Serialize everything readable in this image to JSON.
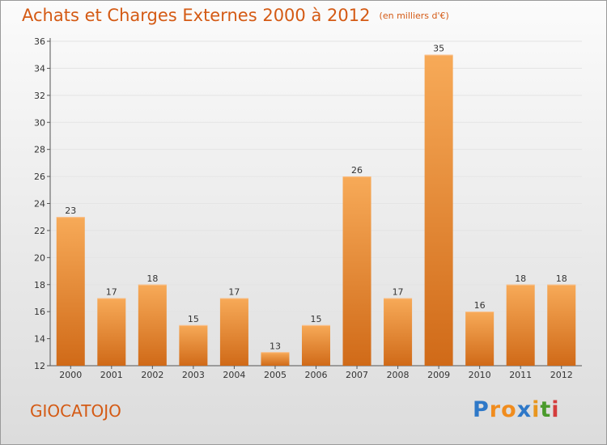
{
  "title": "Achats et Charges Externes 2000 à 2012",
  "subtitle": "(en milliers d'€)",
  "commune": "GIOCATOJO",
  "logo": {
    "text": "Proxiti",
    "letters": [
      "P",
      "r",
      "o",
      "x",
      "i",
      "t",
      "i"
    ],
    "colors": [
      "#2e78c8",
      "#f08c1e",
      "#f08c1e",
      "#2e78c8",
      "#e8961e",
      "#4a9a2c",
      "#d43c3c"
    ]
  },
  "colors": {
    "title": "#d45a14",
    "bar_top": "#f7aa58",
    "bar_bottom": "#d06a18",
    "axis": "#555555",
    "grid": "#e4e4e4"
  },
  "chart_data": {
    "type": "bar",
    "categories": [
      "2000",
      "2001",
      "2002",
      "2003",
      "2004",
      "2005",
      "2006",
      "2007",
      "2008",
      "2009",
      "2010",
      "2011",
      "2012"
    ],
    "values": [
      23,
      17,
      18,
      15,
      17,
      13,
      15,
      26,
      17,
      35,
      16,
      18,
      18
    ],
    "ylim": [
      12,
      36
    ],
    "yticks": [
      12,
      14,
      16,
      18,
      20,
      22,
      24,
      26,
      28,
      30,
      32,
      34,
      36
    ],
    "grid": true,
    "legend": "none"
  }
}
